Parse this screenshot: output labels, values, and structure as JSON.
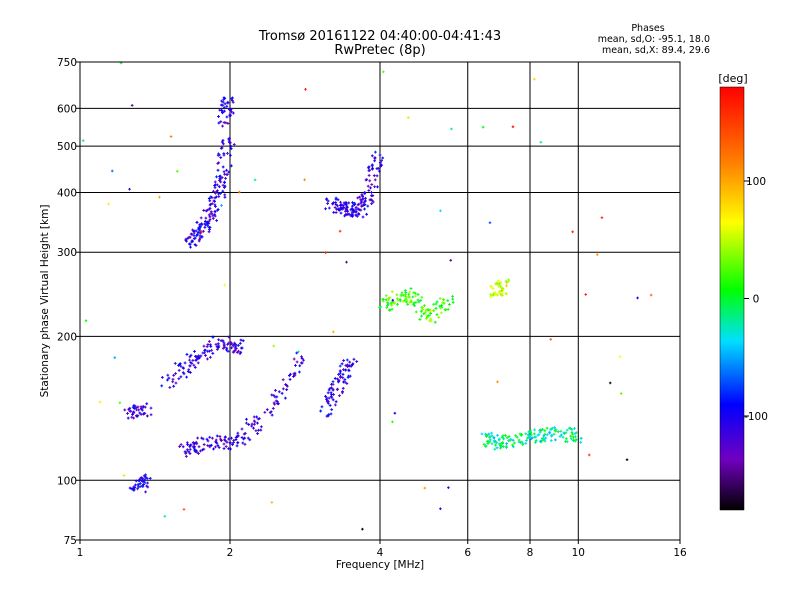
{
  "header": {
    "title_line1": "Tromsø 20161122 04:40:00-04:41:43",
    "title_line2": "RwPretec (8p)",
    "phases_label": "Phases",
    "stats_o": "mean, sd,O: -95.1, 18.0",
    "stats_x": "mean, sd,X:  89.4, 29.6"
  },
  "colorbar": {
    "unit": "[deg]",
    "ticks": [
      {
        "value": 100,
        "label": "100"
      },
      {
        "value": 0,
        "label": "0"
      },
      {
        "value": -100,
        "label": "-100"
      }
    ],
    "range": [
      -180,
      180
    ]
  },
  "chart_data": {
    "type": "scatter",
    "xlabel": "Frequency [MHz]",
    "ylabel": "Stationary phase Virtual Height [km]",
    "x_scale": "log",
    "y_scale": "log",
    "xlim": [
      1,
      16
    ],
    "ylim": [
      75,
      750
    ],
    "x_ticks": [
      1,
      2,
      4,
      6,
      8,
      10,
      16
    ],
    "y_ticks": [
      75,
      100,
      200,
      300,
      400,
      500,
      600,
      750
    ],
    "grid": true,
    "clusters": [
      {
        "x": [
          1.65,
          1.75,
          1.85,
          1.92,
          1.98
        ],
        "y": [
          315,
          335,
          365,
          420,
          520
        ],
        "phase": -110
      },
      {
        "x": [
          1.95,
          1.99
        ],
        "y": [
          560,
          640
        ],
        "phase": -105
      },
      {
        "x": [
          3.2,
          3.4,
          3.6,
          3.8,
          3.95
        ],
        "y": [
          380,
          370,
          365,
          390,
          480
        ],
        "phase": -110
      },
      {
        "x": [
          1.6,
          1.8,
          2.05,
          2.4,
          2.8
        ],
        "y": [
          115,
          120,
          120,
          140,
          180
        ],
        "phase": -115
      },
      {
        "x": [
          1.5,
          1.7,
          1.9,
          2.1
        ],
        "y": [
          160,
          180,
          195,
          190
        ],
        "phase": -112
      },
      {
        "x": [
          3.1,
          3.3,
          3.5
        ],
        "y": [
          140,
          160,
          180
        ],
        "phase": -108
      },
      {
        "x": [
          4.0,
          4.5,
          5.0,
          5.5
        ],
        "y": [
          230,
          245,
          220,
          240
        ],
        "phase": 20
      },
      {
        "x": [
          6.5,
          7.0,
          8.0,
          9.0,
          10.0
        ],
        "y": [
          122,
          120,
          123,
          125,
          124
        ],
        "phase": -20
      },
      {
        "x": [
          6.8,
          7.1
        ],
        "y": [
          250,
          255
        ],
        "phase": 60
      },
      {
        "x": [
          1.25,
          1.35
        ],
        "y": [
          138,
          140
        ],
        "phase": -110
      },
      {
        "x": [
          1.3,
          1.35
        ],
        "y": [
          96,
          100
        ],
        "phase": -100
      }
    ]
  }
}
